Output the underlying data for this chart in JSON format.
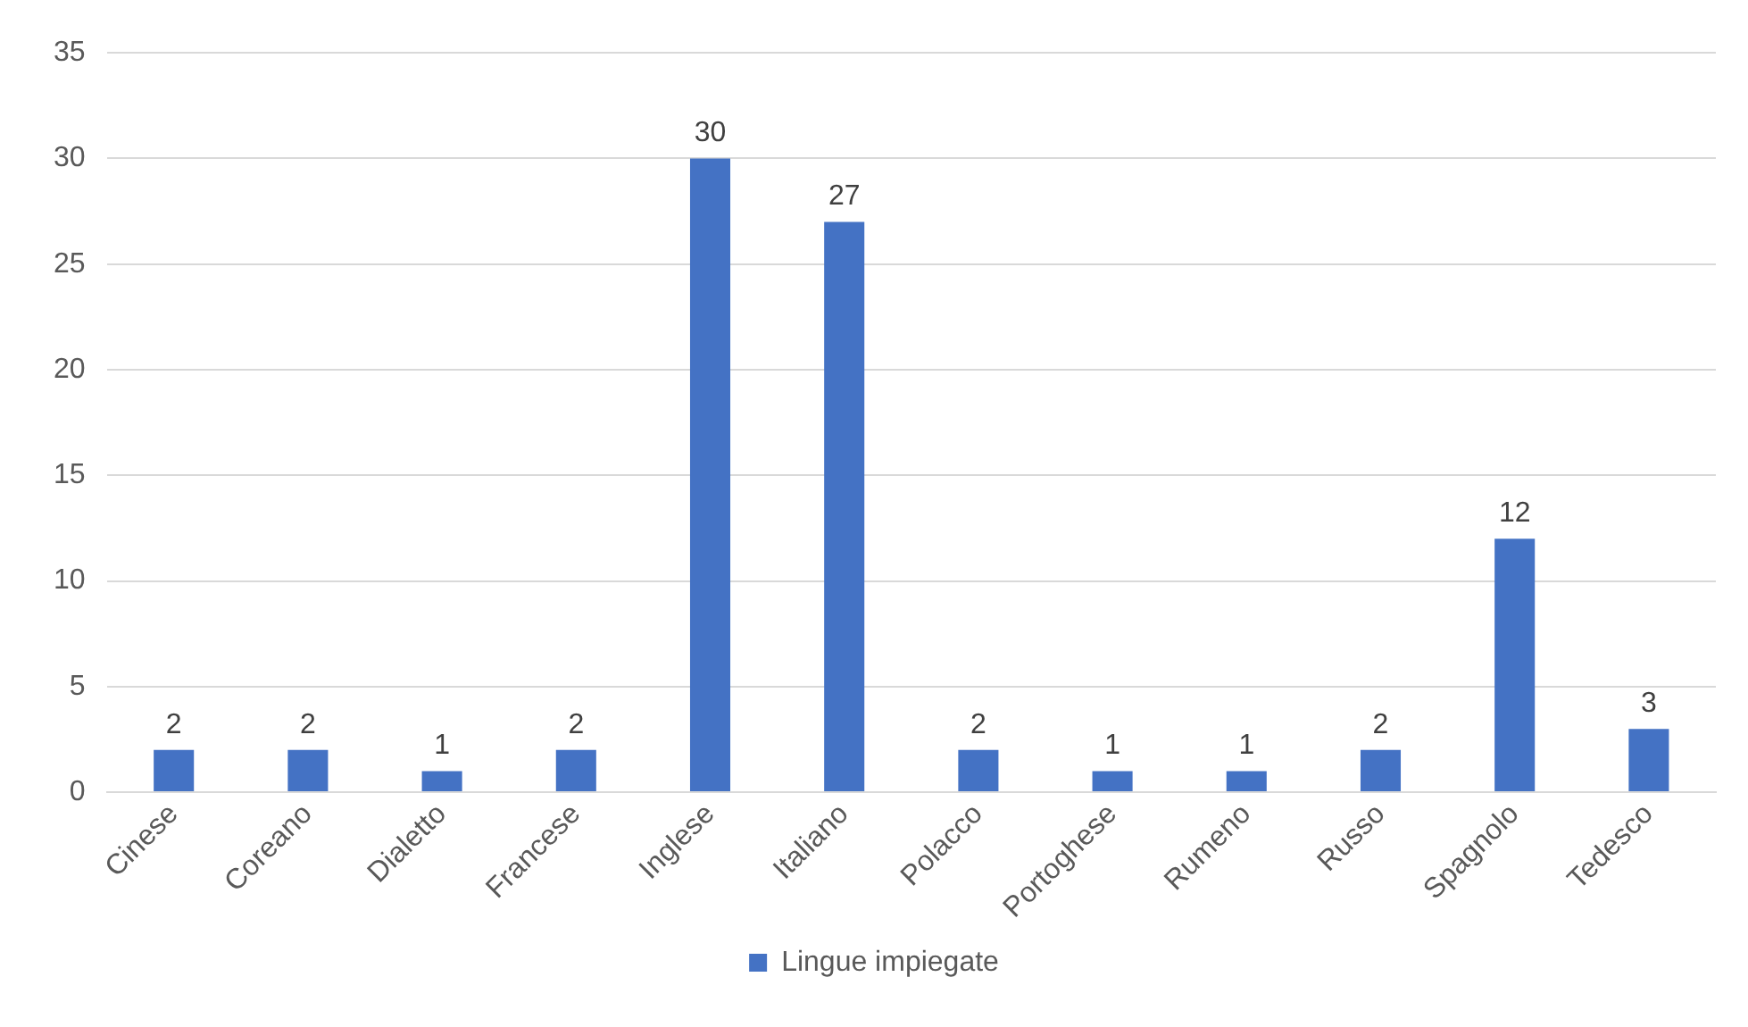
{
  "chart_data": {
    "type": "bar",
    "categories": [
      "Cinese",
      "Coreano",
      "Dialetto",
      "Francese",
      "Inglese",
      "Italiano",
      "Polacco",
      "Portoghese",
      "Rumeno",
      "Russo",
      "Spagnolo",
      "Tedesco"
    ],
    "series": [
      {
        "name": "Lingue impiegate",
        "color": "#4472c4",
        "values": [
          2,
          2,
          1,
          2,
          30,
          27,
          2,
          1,
          1,
          2,
          12,
          3
        ]
      }
    ],
    "ylim": [
      0,
      35
    ],
    "yticks": [
      0,
      5,
      10,
      15,
      20,
      25,
      30,
      35
    ],
    "grid": "y",
    "legend": "bottom",
    "data_labels": true
  }
}
